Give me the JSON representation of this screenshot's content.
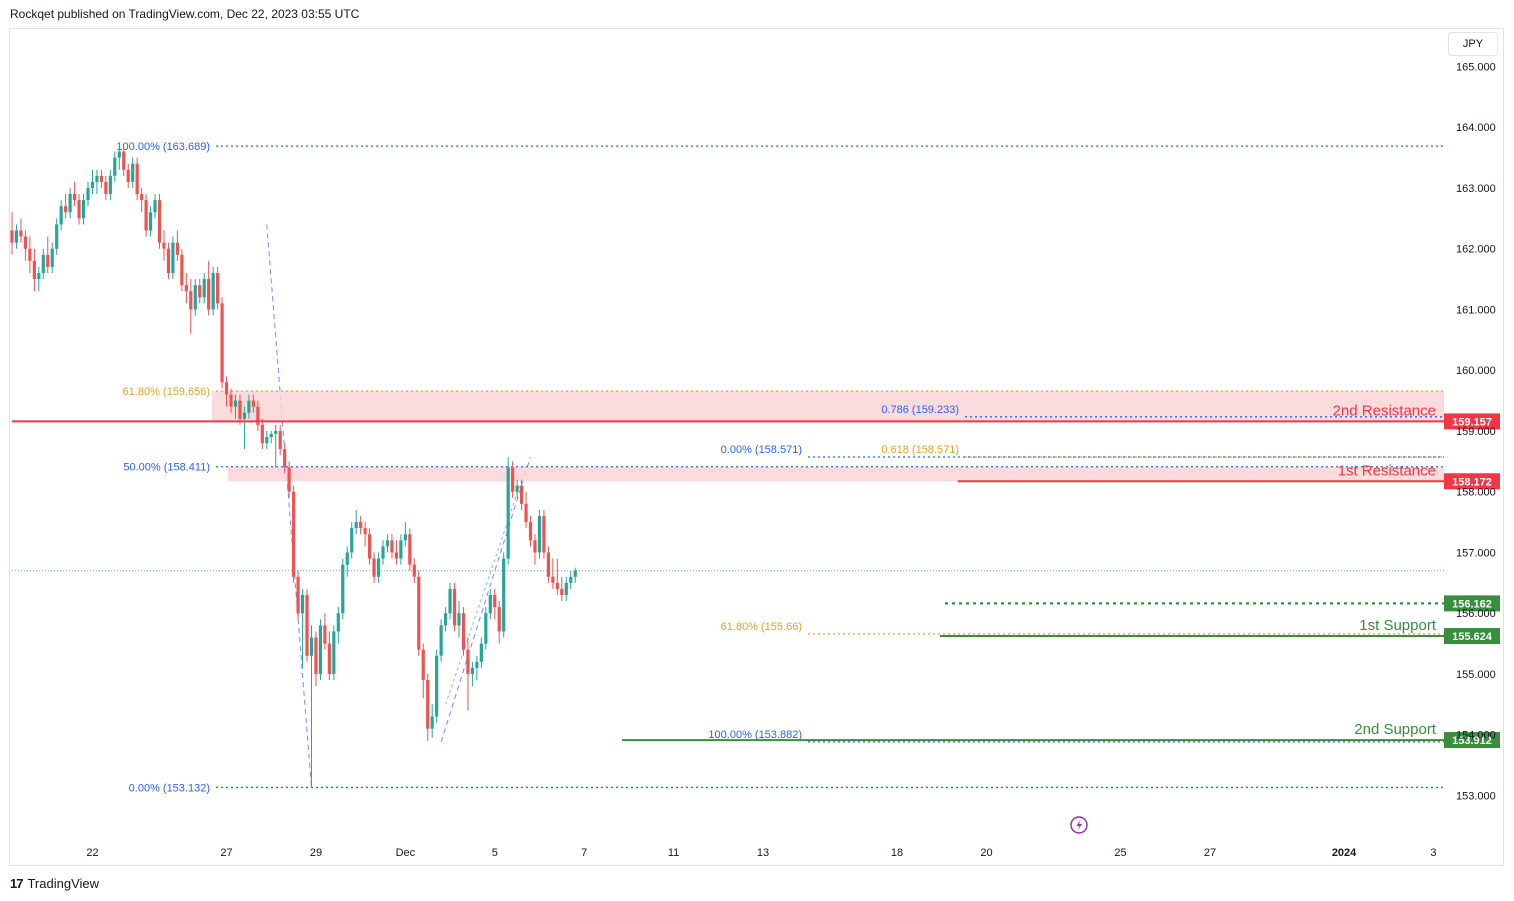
{
  "caption": "Rockqet published on TradingView.com, Dec 22, 2023 03:55 UTC",
  "brand": "TradingView",
  "currency": "JPY",
  "colors": {
    "up": "#26a69a",
    "down": "#ef5350",
    "resistance": "#f23645",
    "support": "#388e3c",
    "fib_blue": "#2962ff",
    "fib_orange": "#e5a323",
    "zone": "#fcd5d6"
  },
  "chart_data": {
    "type": "candlestick",
    "ylim": [
      152.3,
      165.6
    ],
    "y_ticks": [
      "165.000",
      "164.000",
      "163.000",
      "162.000",
      "161.000",
      "160.000",
      "159.000",
      "158.000",
      "157.000",
      "156.000",
      "155.000",
      "154.000",
      "153.000"
    ],
    "x_ticks": [
      {
        "label": "22",
        "slot": 18
      },
      {
        "label": "27",
        "slot": 48
      },
      {
        "label": "29",
        "slot": 68
      },
      {
        "label": "Dec",
        "slot": 88
      },
      {
        "label": "5",
        "slot": 108
      },
      {
        "label": "7",
        "slot": 128
      },
      {
        "label": "11",
        "slot": 148
      },
      {
        "label": "13",
        "slot": 168
      },
      {
        "label": "18",
        "slot": 198
      },
      {
        "label": "20",
        "slot": 218
      },
      {
        "label": "25",
        "slot": 248
      },
      {
        "label": "27",
        "slot": 268
      },
      {
        "label": "2024",
        "slot": 298
      },
      {
        "label": "3",
        "slot": 318
      }
    ],
    "candles": [
      [
        162.3,
        162.6,
        161.9,
        162.1
      ],
      [
        162.1,
        162.4,
        162.0,
        162.3
      ],
      [
        162.3,
        162.5,
        162.1,
        162.2
      ],
      [
        162.2,
        162.3,
        161.8,
        162.0
      ],
      [
        162.0,
        162.2,
        161.6,
        161.8
      ],
      [
        161.8,
        162.0,
        161.3,
        161.5
      ],
      [
        161.5,
        161.7,
        161.3,
        161.6
      ],
      [
        161.6,
        162.0,
        161.5,
        161.9
      ],
      [
        161.9,
        162.2,
        161.6,
        161.7
      ],
      [
        161.7,
        162.1,
        161.6,
        162.0
      ],
      [
        162.0,
        162.5,
        161.9,
        162.4
      ],
      [
        162.4,
        162.8,
        162.3,
        162.7
      ],
      [
        162.7,
        162.9,
        162.5,
        162.6
      ],
      [
        162.6,
        163.0,
        162.5,
        162.9
      ],
      [
        162.9,
        163.1,
        162.7,
        162.8
      ],
      [
        162.8,
        162.9,
        162.4,
        162.5
      ],
      [
        162.5,
        162.9,
        162.4,
        162.8
      ],
      [
        162.8,
        163.1,
        162.7,
        163.0
      ],
      [
        163.0,
        163.3,
        162.9,
        163.1
      ],
      [
        163.1,
        163.3,
        162.9,
        163.2
      ],
      [
        163.2,
        163.3,
        163.0,
        163.1
      ],
      [
        163.1,
        163.2,
        162.8,
        162.9
      ],
      [
        162.9,
        163.3,
        162.8,
        163.2
      ],
      [
        163.2,
        163.6,
        163.1,
        163.5
      ],
      [
        163.5,
        163.69,
        163.3,
        163.6
      ],
      [
        163.6,
        163.68,
        163.2,
        163.3
      ],
      [
        163.3,
        163.4,
        163.0,
        163.1
      ],
      [
        163.1,
        163.5,
        163.0,
        163.4
      ],
      [
        163.4,
        163.5,
        162.8,
        162.9
      ],
      [
        162.9,
        163.0,
        162.6,
        162.8
      ],
      [
        162.8,
        162.9,
        162.2,
        162.3
      ],
      [
        162.3,
        162.7,
        162.2,
        162.6
      ],
      [
        162.6,
        162.9,
        162.5,
        162.8
      ],
      [
        162.8,
        162.9,
        162.0,
        162.1
      ],
      [
        162.1,
        162.3,
        161.8,
        162.0
      ],
      [
        162.0,
        162.1,
        161.5,
        161.6
      ],
      [
        161.6,
        162.2,
        161.5,
        162.1
      ],
      [
        162.1,
        162.3,
        161.8,
        161.9
      ],
      [
        161.9,
        162.0,
        161.3,
        161.4
      ],
      [
        161.4,
        161.6,
        161.1,
        161.3
      ],
      [
        161.3,
        161.5,
        160.6,
        161.0
      ],
      [
        161.0,
        161.5,
        160.9,
        161.4
      ],
      [
        161.4,
        161.5,
        161.1,
        161.2
      ],
      [
        161.2,
        161.6,
        161.1,
        161.5
      ],
      [
        161.5,
        161.8,
        160.9,
        161.0
      ],
      [
        161.0,
        161.7,
        160.9,
        161.6
      ],
      [
        161.6,
        161.7,
        161.0,
        161.1
      ],
      [
        161.1,
        161.2,
        159.7,
        159.8
      ],
      [
        159.8,
        159.9,
        159.4,
        159.6
      ],
      [
        159.6,
        159.7,
        159.3,
        159.4
      ],
      [
        159.4,
        159.6,
        159.2,
        159.5
      ],
      [
        159.5,
        159.6,
        159.1,
        159.2
      ],
      [
        159.2,
        159.4,
        158.7,
        159.3
      ],
      [
        159.3,
        159.6,
        159.2,
        159.5
      ],
      [
        159.5,
        159.6,
        159.3,
        159.4
      ],
      [
        159.4,
        159.5,
        159.0,
        159.1
      ],
      [
        159.1,
        159.2,
        158.7,
        158.8
      ],
      [
        158.8,
        159.0,
        158.7,
        158.9
      ],
      [
        158.9,
        159.0,
        158.8,
        158.95
      ],
      [
        158.95,
        159.1,
        158.4,
        159.0
      ],
      [
        159.0,
        159.1,
        158.6,
        158.7
      ],
      [
        158.7,
        158.8,
        158.3,
        158.4
      ],
      [
        158.4,
        158.5,
        157.9,
        158.0
      ],
      [
        158.0,
        158.1,
        156.5,
        156.6
      ],
      [
        156.6,
        156.7,
        155.9,
        156.0
      ],
      [
        156.0,
        156.4,
        155.1,
        156.3
      ],
      [
        156.3,
        156.4,
        155.2,
        155.3
      ],
      [
        155.3,
        155.8,
        153.132,
        155.6
      ],
      [
        155.6,
        155.7,
        154.8,
        155.0
      ],
      [
        155.0,
        155.9,
        154.9,
        155.8
      ],
      [
        155.8,
        156.0,
        155.4,
        155.5
      ],
      [
        155.5,
        155.7,
        154.9,
        155.0
      ],
      [
        155.0,
        155.8,
        154.9,
        155.7
      ],
      [
        155.7,
        156.1,
        155.5,
        156.0
      ],
      [
        156.0,
        156.9,
        155.9,
        156.8
      ],
      [
        156.8,
        157.1,
        156.6,
        157.0
      ],
      [
        157.0,
        157.5,
        156.9,
        157.4
      ],
      [
        157.4,
        157.7,
        157.3,
        157.5
      ],
      [
        157.5,
        157.6,
        157.3,
        157.4
      ],
      [
        157.4,
        157.5,
        157.1,
        157.3
      ],
      [
        157.3,
        157.4,
        156.8,
        156.9
      ],
      [
        156.9,
        157.0,
        156.5,
        156.6
      ],
      [
        156.6,
        157.0,
        156.5,
        156.9
      ],
      [
        156.9,
        157.2,
        156.8,
        157.1
      ],
      [
        157.1,
        157.3,
        157.0,
        157.2
      ],
      [
        157.2,
        157.3,
        156.9,
        157.0
      ],
      [
        157.0,
        157.2,
        156.8,
        156.9
      ],
      [
        156.9,
        157.3,
        156.8,
        157.2
      ],
      [
        157.2,
        157.5,
        157.1,
        157.3
      ],
      [
        157.3,
        157.4,
        156.7,
        156.8
      ],
      [
        156.8,
        156.9,
        156.5,
        156.6
      ],
      [
        156.6,
        156.7,
        155.3,
        155.4
      ],
      [
        155.4,
        155.5,
        154.6,
        154.9
      ],
      [
        154.9,
        155.0,
        153.9,
        154.1
      ],
      [
        154.1,
        154.5,
        153.95,
        154.3
      ],
      [
        154.3,
        155.4,
        154.2,
        155.3
      ],
      [
        155.3,
        155.9,
        155.2,
        155.8
      ],
      [
        155.8,
        156.1,
        155.7,
        156.0
      ],
      [
        156.0,
        156.5,
        155.9,
        156.4
      ],
      [
        156.4,
        156.5,
        155.7,
        155.8
      ],
      [
        155.8,
        156.2,
        155.6,
        156.0
      ],
      [
        156.0,
        156.1,
        155.3,
        155.4
      ],
      [
        155.4,
        155.6,
        154.4,
        155.0
      ],
      [
        155.0,
        155.2,
        154.8,
        155.1
      ],
      [
        155.1,
        155.3,
        154.9,
        155.2
      ],
      [
        155.2,
        155.6,
        155.1,
        155.5
      ],
      [
        155.5,
        156.1,
        155.4,
        156.0
      ],
      [
        156.0,
        156.4,
        155.9,
        156.3
      ],
      [
        156.3,
        156.4,
        155.9,
        156.1
      ],
      [
        156.1,
        156.2,
        155.5,
        155.7
      ],
      [
        155.7,
        157.0,
        155.6,
        156.9
      ],
      [
        156.9,
        158.57,
        156.8,
        158.4
      ],
      [
        158.4,
        158.5,
        157.9,
        158.0
      ],
      [
        158.0,
        158.2,
        157.9,
        158.1
      ],
      [
        158.1,
        158.2,
        157.7,
        157.8
      ],
      [
        157.8,
        158.0,
        157.4,
        157.5
      ],
      [
        157.5,
        157.6,
        157.1,
        157.2
      ],
      [
        157.2,
        157.3,
        156.8,
        157.0
      ],
      [
        157.0,
        157.7,
        156.9,
        157.6
      ],
      [
        157.6,
        157.7,
        156.9,
        157.0
      ],
      [
        157.0,
        157.1,
        156.5,
        156.6
      ],
      [
        156.6,
        156.9,
        156.4,
        156.5
      ],
      [
        156.5,
        156.9,
        156.3,
        156.4
      ],
      [
        156.4,
        156.6,
        156.2,
        156.3
      ],
      [
        156.3,
        156.6,
        156.2,
        156.5
      ],
      [
        156.5,
        156.7,
        156.4,
        156.6
      ],
      [
        156.6,
        156.75,
        156.5,
        156.7
      ]
    ],
    "hlines": [
      {
        "name": "2nd Resistance",
        "price": 159.157,
        "label": "159.157",
        "text": "2nd Resistance",
        "kind": "resistance"
      },
      {
        "name": "1st Resistance",
        "price": 158.172,
        "label": "158.172",
        "text": "1st Resistance",
        "kind": "resistance"
      },
      {
        "name": "1st Support",
        "price": 155.624,
        "label": "155.624",
        "text": "1st Support",
        "kind": "support"
      },
      {
        "name": "2nd Support",
        "price": 153.912,
        "label": "153.912",
        "text": "2nd Support",
        "kind": "support"
      }
    ],
    "level_marker": {
      "price": 156.162,
      "label": "156.162"
    },
    "last_price": 156.7,
    "fib_left": [
      {
        "text": "100.00% (163.689)",
        "price": 163.689
      },
      {
        "text": "61.80% (159.656)",
        "price": 159.656
      },
      {
        "text": "50.00% (158.411)",
        "price": 158.411
      },
      {
        "text": "0.00% (153.132)",
        "price": 153.132
      }
    ],
    "fib_right": [
      {
        "text": "0.786 (159.233)",
        "price": 159.233
      },
      {
        "text": "0.618 (158.571)",
        "price": 158.571
      },
      {
        "text": "0.00% (158.571)",
        "price": 158.571
      },
      {
        "text": "61.80% (155.66)",
        "price": 155.66
      },
      {
        "text": "100.00% (153.882)",
        "price": 153.882
      }
    ]
  }
}
